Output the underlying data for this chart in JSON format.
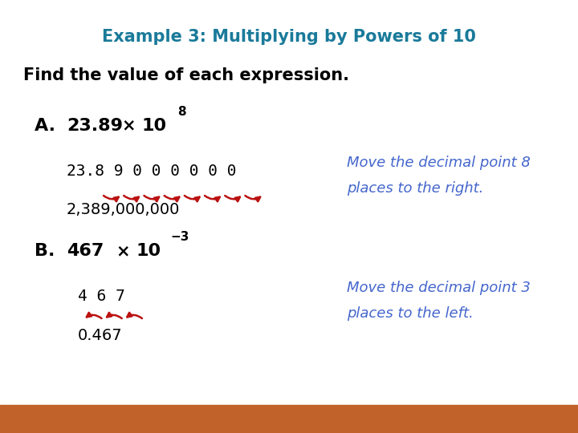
{
  "title": "Example 3: Multiplying by Powers of 10",
  "title_color": "#1a7a9a",
  "subtitle": "Find the value of each expression.",
  "subtitle_color": "#000000",
  "bg_color": "#ffffff",
  "bottom_bar_color": "#c0622a",
  "part_a_note_line1": "Move the decimal point 8",
  "part_a_note_line2": "places to the right.",
  "part_a_result": "2,389,000,000",
  "part_b_note_line1": "Move the decimal point 3",
  "part_b_note_line2": "places to the left.",
  "part_b_result": "0.467",
  "note_color": "#4466cc",
  "arrow_color": "#bb1111",
  "label_color": "#000000"
}
